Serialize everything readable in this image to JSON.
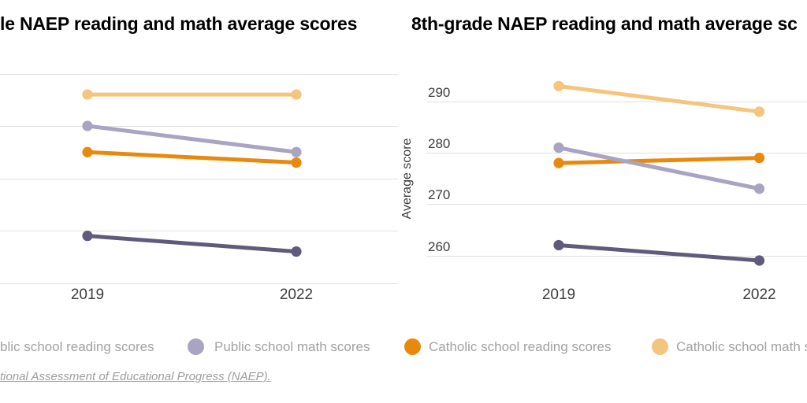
{
  "chart_data": [
    {
      "type": "line",
      "title": "le NAEP reading and math average scores",
      "xlabel": "",
      "ylabel": "",
      "x_labels": [
        "2019",
        "2022"
      ],
      "yticks": [
        250,
        240,
        230,
        220,
        210
      ],
      "ytick_labels_visible": false,
      "ylim": [
        210,
        255
      ],
      "grid": true,
      "series": [
        {
          "name": "Catholic school math scores",
          "color": "#f5c57e",
          "values": [
            246,
            246
          ]
        },
        {
          "name": "Catholic school reading scores",
          "color": "#e8890b",
          "values": [
            235,
            233
          ]
        },
        {
          "name": "Public school math scores",
          "color": "#a9a4c1",
          "values": [
            240,
            235
          ]
        },
        {
          "name": "Public school reading scores",
          "color": "#615a7c",
          "values": [
            219,
            216
          ]
        }
      ]
    },
    {
      "type": "line",
      "title": "8th-grade NAEP reading and math average sc",
      "xlabel": "",
      "ylabel": "Average score",
      "x_labels": [
        "2019",
        "2022"
      ],
      "yticks": [
        290,
        280,
        270,
        260
      ],
      "ytick_labels_visible": true,
      "ylim": [
        256,
        295
      ],
      "grid": true,
      "series": [
        {
          "name": "Catholic school math scores",
          "color": "#f5c57e",
          "values": [
            293,
            288
          ]
        },
        {
          "name": "Catholic school reading scores",
          "color": "#e8890b",
          "values": [
            278,
            279
          ]
        },
        {
          "name": "Public school math scores",
          "color": "#a9a4c1",
          "values": [
            281,
            273
          ]
        },
        {
          "name": "Public school reading scores",
          "color": "#615a7c",
          "values": [
            262,
            259
          ]
        }
      ]
    }
  ],
  "legend": {
    "items": [
      {
        "label": "blic school reading scores",
        "color": "#615a7c",
        "dot_visible": false
      },
      {
        "label": "Public school math scores",
        "color": "#a9a4c1",
        "dot_visible": true
      },
      {
        "label": "Catholic school reading scores",
        "color": "#e8890b",
        "dot_visible": true
      },
      {
        "label": "Catholic school math s",
        "color": "#f5c57e",
        "dot_visible": true
      }
    ]
  },
  "source": {
    "text": "tional Assessment of Educational Progress (NAEP)."
  }
}
